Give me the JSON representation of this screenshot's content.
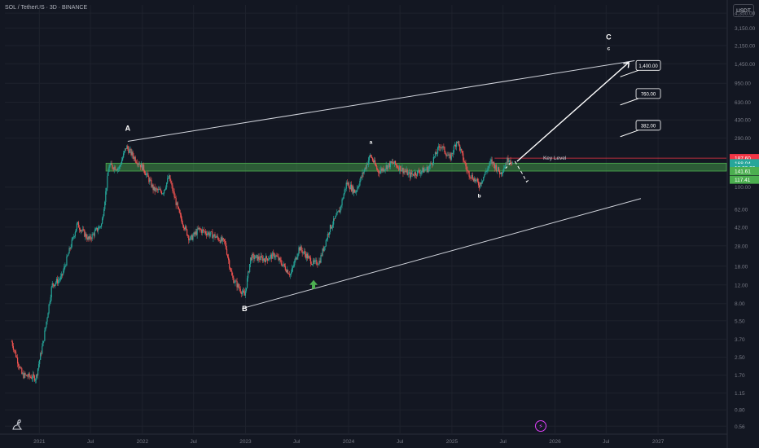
{
  "header": {
    "symbol_title": "SOL / TetherUS · 3D · BINANCE",
    "currency_button": "USDT"
  },
  "colors": {
    "background": "#131722",
    "up_candle": "#26a69a",
    "down_candle": "#ef5350",
    "key_zone": "#4caf50",
    "channel": "#d1d4dc",
    "key_level_line": "#f23645"
  },
  "icons": {
    "logo": "dinosaur-icon",
    "alert": "lightning-icon",
    "bullish_marker": "green-up-arrow-icon"
  },
  "chart_data": {
    "type": "candlestick",
    "title": "SOL / TetherUS · 3D · BINANCE",
    "y_scale": "log",
    "y_ticks": [
      "4,350.00",
      "3,150.00",
      "2,150.00",
      "1,450.00",
      "950.00",
      "630.00",
      "430.00",
      "290.00",
      "100.00",
      "62.00",
      "42.00",
      "28.00",
      "18.00",
      "12.00",
      "8.00",
      "5.50",
      "3.70",
      "2.50",
      "1.70",
      "1.15",
      "0.80",
      "0.56"
    ],
    "x_ticks": [
      "2021",
      "Jul",
      "2022",
      "Jul",
      "2023",
      "Jul",
      "2024",
      "Jul",
      "2025",
      "Jul",
      "2026",
      "Jul",
      "2027"
    ],
    "price_path": [
      [
        "2020-09-25",
        3.5
      ],
      [
        "2020-11-01",
        1.7
      ],
      [
        "2020-12-20",
        1.6
      ],
      [
        "2021-01-15",
        3.5
      ],
      [
        "2021-02-15",
        12
      ],
      [
        "2021-03-20",
        14
      ],
      [
        "2021-05-15",
        45
      ],
      [
        "2021-06-25",
        32
      ],
      [
        "2021-08-10",
        45
      ],
      [
        "2021-09-05",
        160
      ],
      [
        "2021-10-10",
        150
      ],
      [
        "2021-11-05",
        240
      ],
      [
        "2021-12-10",
        180
      ],
      [
        "2022-01-05",
        150
      ],
      [
        "2022-02-10",
        95
      ],
      [
        "2022-03-15",
        90
      ],
      [
        "2022-04-05",
        125
      ],
      [
        "2022-05-12",
        55
      ],
      [
        "2022-06-18",
        32
      ],
      [
        "2022-07-20",
        40
      ],
      [
        "2022-09-10",
        35
      ],
      [
        "2022-10-20",
        30
      ],
      [
        "2022-11-15",
        14
      ],
      [
        "2022-12-29",
        9.5
      ],
      [
        "2023-01-20",
        22
      ],
      [
        "2023-03-10",
        21
      ],
      [
        "2023-04-15",
        23
      ],
      [
        "2023-06-10",
        15
      ],
      [
        "2023-07-10",
        27
      ],
      [
        "2023-08-30",
        19
      ],
      [
        "2023-09-20",
        20
      ],
      [
        "2023-10-25",
        40
      ],
      [
        "2023-11-30",
        60
      ],
      [
        "2023-12-25",
        110
      ],
      [
        "2024-01-25",
        90
      ],
      [
        "2024-03-18",
        200
      ],
      [
        "2024-04-15",
        140
      ],
      [
        "2024-06-05",
        170
      ],
      [
        "2024-08-05",
        130
      ],
      [
        "2024-10-10",
        150
      ],
      [
        "2024-11-22",
        250
      ],
      [
        "2024-12-25",
        185
      ],
      [
        "2025-01-19",
        280
      ],
      [
        "2025-02-25",
        140
      ],
      [
        "2025-04-08",
        105
      ],
      [
        "2025-05-20",
        175
      ],
      [
        "2025-06-22",
        135
      ],
      [
        "2025-07-22",
        190
      ],
      [
        "2025-08-05",
        165
      ]
    ],
    "key_zone": {
      "from": 141.61,
      "to": 168.04
    },
    "key_level": {
      "value": 187.6,
      "label": "Key Level"
    },
    "price_labels": [
      {
        "value": 187.6,
        "label": "187.60",
        "color": "#f23645"
      },
      {
        "value": 168.04,
        "label": "168.04",
        "color": "#26a69a"
      },
      {
        "value": 152.0,
        "label": "18:26:36",
        "color": "#26a69a"
      },
      {
        "value": 141.61,
        "label": "141.61",
        "color": "#4caf50"
      },
      {
        "value": 117.41,
        "label": "117.41",
        "color": "#4caf50"
      }
    ],
    "wave_labels": [
      {
        "label": "A",
        "date": "2021-11-10",
        "value": 340
      },
      {
        "label": "B",
        "date": "2022-12-29",
        "value": 6.8
      },
      {
        "label": "a",
        "date": "2024-03-20",
        "value": 255
      },
      {
        "label": "b",
        "date": "2025-04-08",
        "value": 80
      },
      {
        "label": "C",
        "date": "2026-07-10",
        "value": 2450
      },
      {
        "label": "c",
        "date": "2026-07-10",
        "value": 1950
      }
    ],
    "targets": [
      {
        "value": 1400,
        "label": "1,400.00"
      },
      {
        "value": 760,
        "label": "760.00"
      },
      {
        "value": 382,
        "label": "382.00"
      }
    ],
    "channel_upper": [
      [
        "2021-11-10",
        270
      ],
      [
        "2026-10-10",
        1550
      ]
    ],
    "channel_lower": [
      [
        "2022-12-20",
        7.2
      ],
      [
        "2026-11-01",
        78
      ]
    ],
    "projection_up": [
      [
        "2025-08-20",
        175
      ],
      [
        "2026-09-20",
        1500
      ]
    ],
    "projection_down_dashed": [
      [
        "2025-08-12",
        175
      ],
      [
        "2025-09-10",
        130
      ],
      [
        "2025-09-22",
        112
      ],
      [
        "2025-10-05",
        120
      ]
    ],
    "projection_small_dashed": [
      [
        "2025-07-10",
        150
      ],
      [
        "2025-08-01",
        175
      ]
    ],
    "bullish_marker": {
      "date": "2023-08-30",
      "value": 12
    }
  }
}
